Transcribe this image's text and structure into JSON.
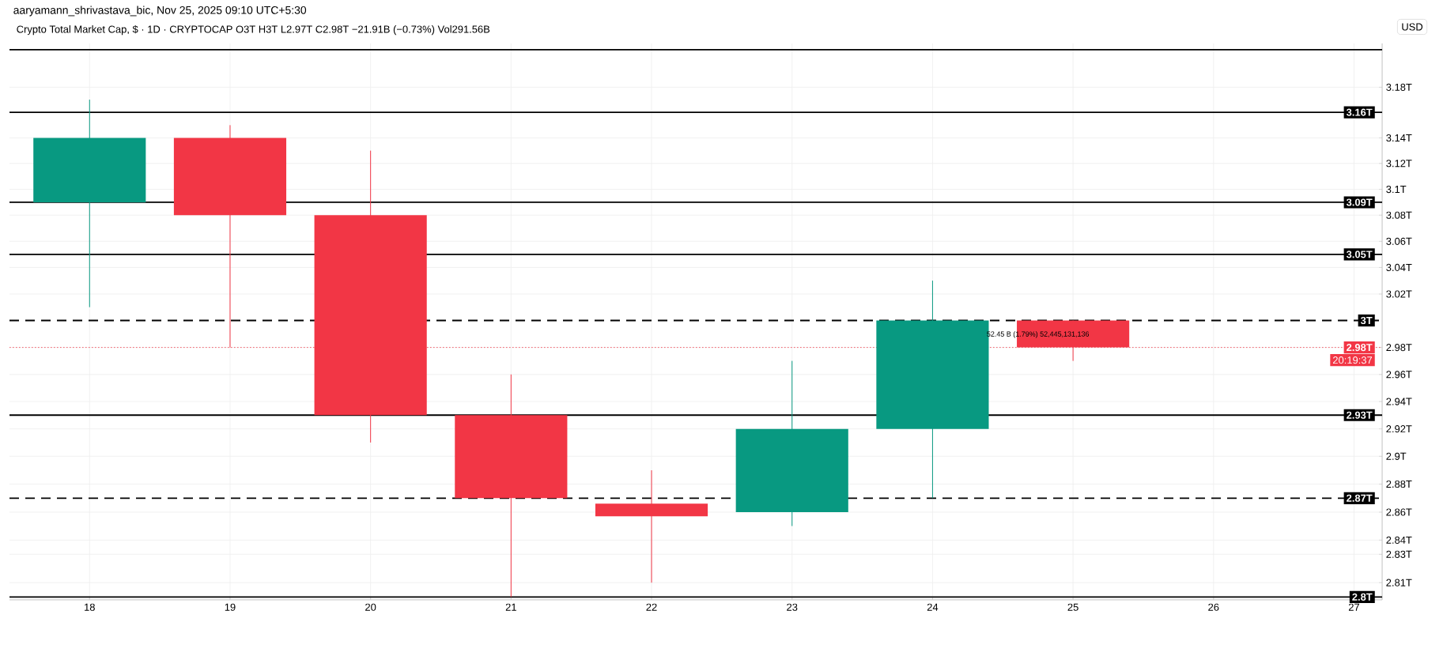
{
  "chart_data": {
    "type": "candlestick",
    "title": "Crypto Total Market Cap, $ · 1D · CRYPTOCAP  O3T  H3T  L2.97T  C2.98T  −21.91B (−0.73%)  Vol291.56B",
    "subtitle": "aaryamann_shrivastava_bic, Nov 25, 2025 09:10 UTC+5:30",
    "ylabel": "USD",
    "categories": [
      "18",
      "19",
      "20",
      "21",
      "22",
      "23",
      "24",
      "25",
      "26",
      "27"
    ],
    "ohlc": [
      [
        3.09,
        3.17,
        3.01,
        3.14
      ],
      [
        3.14,
        3.15,
        2.98,
        3.08
      ],
      [
        3.08,
        3.13,
        2.91,
        2.93
      ],
      [
        2.93,
        2.96,
        2.8,
        2.87
      ],
      [
        2.866,
        2.89,
        2.81,
        2.857
      ],
      [
        2.86,
        2.97,
        2.85,
        2.92
      ],
      [
        2.92,
        3.03,
        2.87,
        3.0
      ],
      [
        3.0,
        3.0,
        2.97,
        2.98
      ],
      null,
      null
    ],
    "colors": [
      "#089981",
      "#f23645",
      "#f23645",
      "#f23645",
      "#f23645",
      "#089981",
      "#089981",
      "#f23645",
      null,
      null
    ],
    "log": true,
    "ylim": [
      2.798,
      3.215
    ],
    "yticks": [
      {
        "value": 2.81,
        "label": "2.81T"
      },
      {
        "value": 2.83,
        "label": "2.83T"
      },
      {
        "value": 2.84,
        "label": "2.84T"
      },
      {
        "value": 2.86,
        "label": "2.86T"
      },
      {
        "value": 2.88,
        "label": "2.88T"
      },
      {
        "value": 2.9,
        "label": "2.9T"
      },
      {
        "value": 2.92,
        "label": "2.92T"
      },
      {
        "value": 2.94,
        "label": "2.94T"
      },
      {
        "value": 2.96,
        "label": "2.96T"
      },
      {
        "value": 2.98,
        "label": "2.98T"
      },
      {
        "value": 3.02,
        "label": "3.02T"
      },
      {
        "value": 3.04,
        "label": "3.04T"
      },
      {
        "value": 3.06,
        "label": "3.06T"
      },
      {
        "value": 3.08,
        "label": "3.08T"
      },
      {
        "value": 3.1,
        "label": "3.1T"
      },
      {
        "value": 3.12,
        "label": "3.12T"
      },
      {
        "value": 3.14,
        "label": "3.14T"
      },
      {
        "value": 3.18,
        "label": "3.18T"
      }
    ],
    "grid": true,
    "ref_lines": [
      {
        "axis": "y",
        "value": 3.21,
        "label": null,
        "color": "#000000",
        "line_style": "solid"
      },
      {
        "axis": "y",
        "value": 3.16,
        "label": "3.16T",
        "color": "#000000",
        "line_style": "solid"
      },
      {
        "axis": "y",
        "value": 3.09,
        "label": "3.09T",
        "color": "#000000",
        "line_style": "solid"
      },
      {
        "axis": "y",
        "value": 3.05,
        "label": "3.05T",
        "color": "#000000",
        "line_style": "solid"
      },
      {
        "axis": "y",
        "value": 3.0,
        "label": "3T",
        "color": "#000000",
        "line_style": "dashed"
      },
      {
        "axis": "y",
        "value": 2.98,
        "label": "2.98T",
        "color": "#f23645",
        "line_style": "dotted"
      },
      {
        "axis": "y",
        "value": 2.93,
        "label": "2.93T",
        "color": "#000000",
        "line_style": "solid"
      },
      {
        "axis": "y",
        "value": 2.87,
        "label": "2.87T",
        "color": "#000000",
        "line_style": "dashed"
      },
      {
        "axis": "y",
        "value": 2.8,
        "label": "2.8T",
        "color": "#000000",
        "line_style": "solid"
      }
    ],
    "annotations": [
      "52.45 B (1.79%) 52,445,131,136",
      "20:19:37"
    ]
  }
}
